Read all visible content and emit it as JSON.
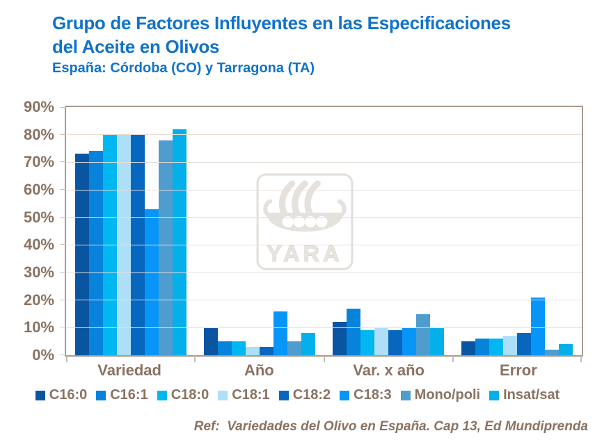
{
  "title": {
    "line1": "Grupo de Factores Influyentes en las Especificaciones",
    "line2": "del Aceite en Olivos",
    "subtitle": "España: Córdoba (CO) y Tarragona (TA)"
  },
  "watermark": {
    "label": "YARA"
  },
  "footer": {
    "ref": "Ref:  Variedades del Olivo en España. Cap 13, Ed Mundiprenda"
  },
  "colors": {
    "title_blue": "#1172C8",
    "axis_text": "#8A7262",
    "grid_line": "#E7DED8",
    "plot_border": "#A89B8F",
    "watermark_gray": "#E5E1DD",
    "background": "#FFFFFF"
  },
  "chart_data": {
    "type": "bar",
    "categories": [
      "Variedad",
      "Año",
      "Var. x año",
      "Error"
    ],
    "series": [
      {
        "name": "C16:0",
        "color": "#0A55A2",
        "values": [
          73,
          10,
          12,
          5
        ]
      },
      {
        "name": "C16:1",
        "color": "#0883DC",
        "values": [
          74,
          5,
          17,
          6
        ]
      },
      {
        "name": "C18:0",
        "color": "#00B7F1",
        "values": [
          80,
          5,
          9,
          6
        ]
      },
      {
        "name": "C18:1",
        "color": "#AEDFF9",
        "values": [
          80,
          3,
          10,
          7
        ]
      },
      {
        "name": "C18:2",
        "color": "#0767BE",
        "values": [
          80,
          3,
          9,
          8
        ]
      },
      {
        "name": "C18:3",
        "color": "#0895F8",
        "values": [
          53,
          16,
          10,
          21
        ]
      },
      {
        "name": "Mono/poli",
        "color": "#4F9DCE",
        "values": [
          78,
          5,
          15,
          2
        ]
      },
      {
        "name": "Insat/sat",
        "color": "#05AFEA",
        "values": [
          82,
          8,
          10,
          4
        ]
      }
    ],
    "ylim": [
      0,
      90
    ],
    "ytick_step": 10,
    "ytick_labels": [
      "90%",
      "80%",
      "70%",
      "60%",
      "50%",
      "40%",
      "30%",
      "20%",
      "10%",
      "0%"
    ],
    "grid": true,
    "legend_position": "bottom"
  }
}
